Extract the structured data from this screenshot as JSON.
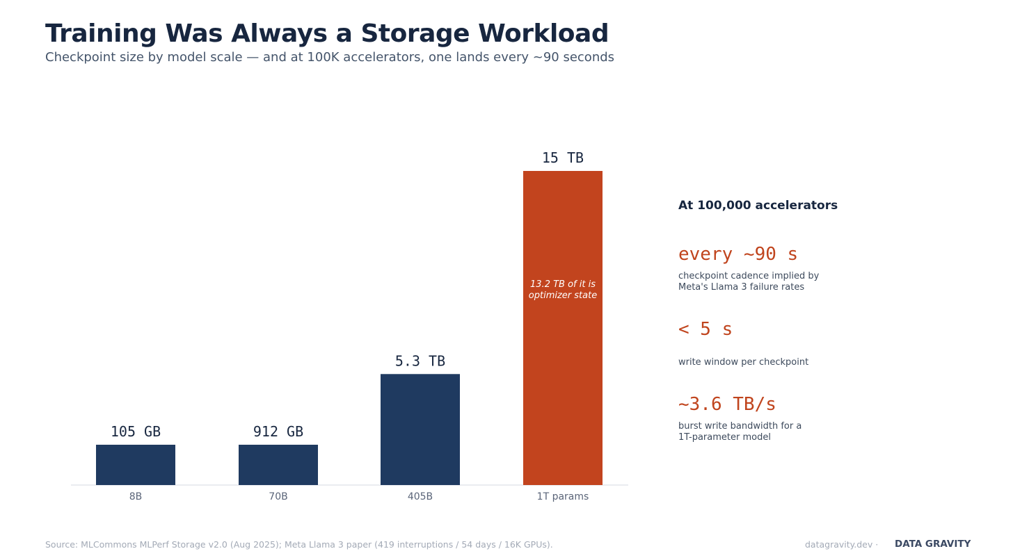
{
  "header": {
    "title": "Training Was Always a Storage Workload",
    "subtitle": "Checkpoint size by model scale — and at 100K accelerators, one lands every ~90 seconds"
  },
  "chart_data": {
    "type": "bar",
    "title": "Training Was Always a Storage Workload",
    "categories": [
      "8B",
      "70B",
      "405B",
      "1T params"
    ],
    "values": [
      0.105,
      0.912,
      5.3,
      15
    ],
    "value_unit": "TB",
    "value_labels": [
      "105 GB",
      "912 GB",
      "5.3 TB",
      "15 TB"
    ],
    "highlight_index": 3,
    "annotation": {
      "category": "1T params",
      "lines": [
        "13.2 TB of it is",
        "optimizer state"
      ]
    },
    "xlabel": "",
    "ylabel": "",
    "ylim": [
      0,
      15
    ],
    "grid": false,
    "colors": {
      "bar": "#1f3a60",
      "highlight": "#c2441e",
      "axis": "#e3e6eb"
    }
  },
  "side_panel": {
    "heading": "At 100,000 accelerators",
    "stats": [
      {
        "value": "every ~90 s",
        "description": "checkpoint cadence implied by\nMeta's Llama 3 failure rates"
      },
      {
        "value": "< 5 s",
        "description": "write window per checkpoint"
      },
      {
        "value": "~3.6 TB/s",
        "description": "burst write bandwidth for a\n1T-parameter model"
      }
    ]
  },
  "footer": {
    "source": "Source: MLCommons MLPerf Storage v2.0 (Aug 2025); Meta Llama 3 paper (419 interruptions / 54 days / 16K GPUs).",
    "site": "datagravity.dev ·",
    "brand": "DATA GRAVITY"
  }
}
